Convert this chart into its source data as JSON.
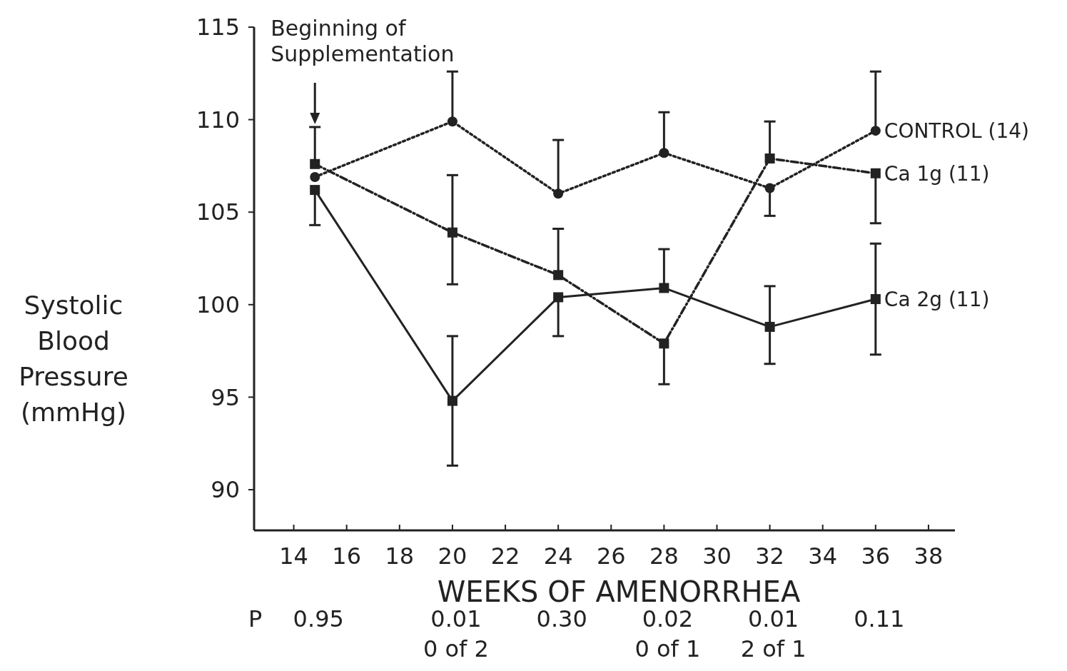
{
  "chart_data": {
    "type": "line",
    "xlabel": "WEEKS OF AMENORRHEA",
    "ylabel": "Systolic\nBlood\nPressure\n(mmHg)",
    "x": [
      14.8,
      20,
      24,
      28,
      32,
      36
    ],
    "xlim": [
      12.5,
      39
    ],
    "xticks": [
      14,
      16,
      18,
      20,
      22,
      24,
      26,
      28,
      30,
      32,
      34,
      36,
      38
    ],
    "ylim": [
      87.8,
      115
    ],
    "yticks": [
      90,
      95,
      100,
      105,
      110,
      115
    ],
    "grid": false,
    "series": [
      {
        "name": "CONTROL (14)",
        "color": "#222222",
        "marker": "circle",
        "line_style": "dotted",
        "values": [
          106.9,
          109.9,
          106.0,
          108.2,
          106.3,
          109.4
        ],
        "errors": [
          null,
          [
            109.9,
            112.6
          ],
          [
            106.0,
            108.9
          ],
          [
            108.2,
            110.4
          ],
          [
            104.8,
            106.3
          ],
          [
            109.4,
            112.6
          ]
        ]
      },
      {
        "name": "Ca 1g (11)",
        "color": "#222222",
        "marker": "square",
        "line_style": "dashed",
        "values": [
          107.6,
          103.9,
          101.6,
          97.9,
          107.9,
          107.1
        ],
        "errors": [
          [
            107.6,
            109.6
          ],
          [
            101.1,
            107.0
          ],
          [
            101.6,
            104.1
          ],
          [
            95.7,
            97.9
          ],
          [
            107.9,
            109.9
          ],
          [
            104.4,
            107.1
          ]
        ]
      },
      {
        "name": "Ca 2g (11)",
        "color": "#222222",
        "marker": "square",
        "line_style": "solid",
        "values": [
          106.2,
          94.8,
          100.4,
          100.9,
          98.8,
          100.3
        ],
        "errors": [
          [
            104.3,
            106.2
          ],
          [
            91.3,
            98.3
          ],
          [
            98.3,
            100.4
          ],
          [
            100.9,
            103.0
          ],
          [
            96.8,
            101.0
          ],
          [
            97.3,
            103.3
          ]
        ]
      }
    ],
    "annotations": [
      "Beginning of\nSupplementation",
      "P",
      "0.95",
      "0.01\n0 of 2",
      "0.30",
      "0.02\n0 of 1",
      "0.01\n2 of 1",
      "0.11"
    ]
  }
}
